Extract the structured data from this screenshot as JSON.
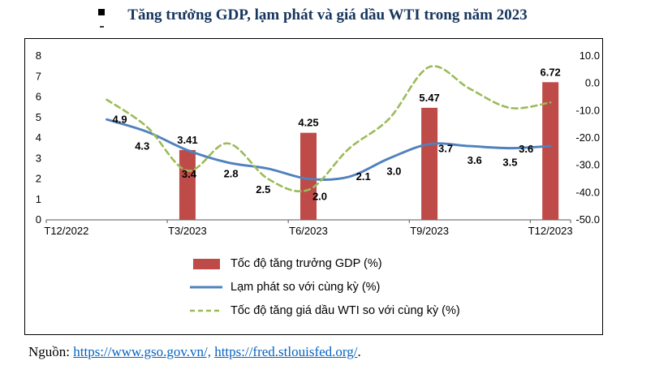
{
  "page": {
    "source_prefix": "Nguồn:",
    "source_links": [
      {
        "text": "https://www.gso.gov.vn/,"
      },
      {
        "text": "https://fred.stlouisfed.org/"
      }
    ],
    "source_suffix": "."
  },
  "chart_data": {
    "type": "combo-bar-line",
    "title": "Tăng trưởng GDP, lạm phát và giá dầu WTI trong năm 2023",
    "grid": false,
    "legend_position": "bottom-left",
    "months_span": 13,
    "x_tick_labels": [
      "T12/2022",
      "T3/2023",
      "T6/2023",
      "T9/2023",
      "T12/2023"
    ],
    "x_tick_months": [
      0,
      3,
      6,
      9,
      12
    ],
    "left_axis": {
      "min": 0,
      "max": 8,
      "tick_labels": [
        "0",
        "1",
        "2",
        "3",
        "4",
        "5",
        "6",
        "7",
        "8"
      ]
    },
    "right_axis": {
      "min": -50,
      "max": 10,
      "tick_labels": [
        "10.0",
        "0.0",
        "-10.0",
        "-20.0",
        "-30.0",
        "-40.0",
        "-50.0"
      ]
    },
    "series": [
      {
        "name": "Tốc độ tăng trưởng GDP (%)",
        "type": "bar",
        "axis": "left",
        "color": "#BE4B48",
        "points": [
          {
            "month": 3,
            "value": 3.41,
            "label": "3.41"
          },
          {
            "month": 6,
            "value": 4.25,
            "label": "4.25"
          },
          {
            "month": 9,
            "value": 5.47,
            "label": "5.47"
          },
          {
            "month": 12,
            "value": 6.72,
            "label": "6.72"
          }
        ]
      },
      {
        "name": "Lạm phát so với cùng kỳ (%)",
        "type": "line",
        "axis": "left",
        "color": "#4F81BD",
        "points": [
          {
            "month": 1,
            "value": 4.9,
            "label": "4.9"
          },
          {
            "month": 2,
            "value": 4.3,
            "label": "4.3"
          },
          {
            "month": 3,
            "value": 3.4,
            "label": "3.4"
          },
          {
            "month": 4,
            "value": 2.8,
            "label": "2.8"
          },
          {
            "month": 5,
            "value": 2.5,
            "label": "2.5"
          },
          {
            "month": 6,
            "value": 2.0,
            "label": "2.0"
          },
          {
            "month": 7,
            "value": 2.1,
            "label": "2.1"
          },
          {
            "month": 8,
            "value": 3.0,
            "label": "3.0"
          },
          {
            "month": 9,
            "value": 3.7,
            "label": "3.7"
          },
          {
            "month": 10,
            "value": 3.6,
            "label": "3.6"
          },
          {
            "month": 11,
            "value": 3.5,
            "label": "3.5"
          },
          {
            "month": 12,
            "value": 3.6,
            "label": "3.6"
          }
        ]
      },
      {
        "name": "Tốc độ tăng giá dầu WTI so với cùng kỳ (%)",
        "type": "dashed-line",
        "axis": "right",
        "color": "#9BBB59",
        "points": [
          {
            "month": 1,
            "value": -6
          },
          {
            "month": 2,
            "value": -16
          },
          {
            "month": 3,
            "value": -32
          },
          {
            "month": 4,
            "value": -22
          },
          {
            "month": 5,
            "value": -35
          },
          {
            "month": 6,
            "value": -39
          },
          {
            "month": 7,
            "value": -24
          },
          {
            "month": 8,
            "value": -13
          },
          {
            "month": 9,
            "value": 6
          },
          {
            "month": 10,
            "value": -2
          },
          {
            "month": 11,
            "value": -9
          },
          {
            "month": 12,
            "value": -7
          }
        ]
      }
    ]
  }
}
